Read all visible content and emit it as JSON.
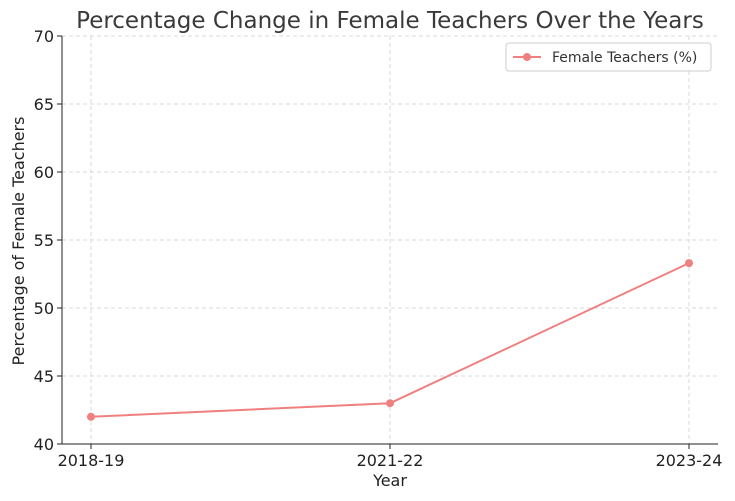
{
  "chart_data": {
    "type": "line",
    "title": "Percentage Change in Female Teachers Over the Years",
    "xlabel": "Year",
    "ylabel": "Percentage of Female Teachers",
    "categories": [
      "2018-19",
      "2021-22",
      "2023-24"
    ],
    "series": [
      {
        "name": "Female Teachers (%)",
        "values": [
          42.0,
          43.0,
          53.3
        ],
        "color": "#f08080"
      }
    ],
    "ylim": [
      40,
      70
    ],
    "yticks": [
      40,
      45,
      50,
      55,
      60,
      65,
      70
    ],
    "grid": true,
    "legend_position": "top-right"
  }
}
